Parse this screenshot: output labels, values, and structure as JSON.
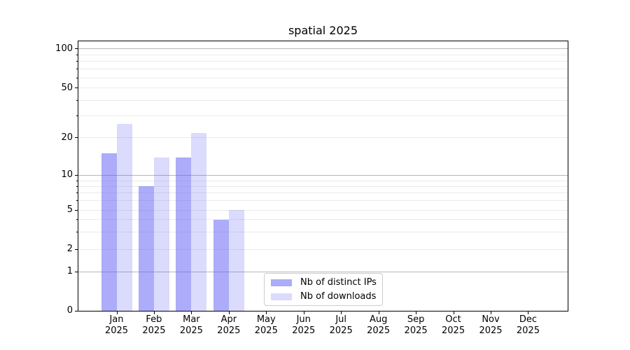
{
  "title": "spatial 2025",
  "chart_data": {
    "type": "bar",
    "title": "spatial 2025",
    "categories": [
      "Jan",
      "Feb",
      "Mar",
      "Apr",
      "May",
      "Jun",
      "Jul",
      "Aug",
      "Sep",
      "Oct",
      "Nov",
      "Dec"
    ],
    "category_year": "2025",
    "series": [
      {
        "name": "Nb of distinct IPs",
        "color": "#acacfa",
        "rgba": "rgba(90,90,245,0.5)",
        "values": [
          15,
          8,
          14,
          4,
          0,
          0,
          0,
          0,
          0,
          0,
          0,
          0
        ]
      },
      {
        "name": "Nb of downloads",
        "color": "#dbdbfd",
        "rgba": "rgba(90,90,245,0.22)",
        "values": [
          26,
          14,
          22,
          5,
          0,
          0,
          0,
          0,
          0,
          0,
          0,
          0
        ]
      }
    ],
    "yticks": [
      0,
      1,
      2,
      5,
      10,
      20,
      50,
      100
    ],
    "major_gridlines": [
      1,
      10,
      100
    ],
    "minor_gridlines": [
      2,
      3,
      4,
      5,
      6,
      7,
      8,
      9,
      20,
      30,
      40,
      50,
      60,
      70,
      80,
      90
    ],
    "ylim": [
      0,
      114
    ],
    "yscale": "log-like (0,1,2,5,10,20,50,100)",
    "grid": "horizontal",
    "legend_position": "lower center",
    "colors": {
      "grid_major": "#b6b6b6",
      "grid_minor": "#ebebeb",
      "spine": "#000000",
      "background": "#ffffff"
    }
  }
}
